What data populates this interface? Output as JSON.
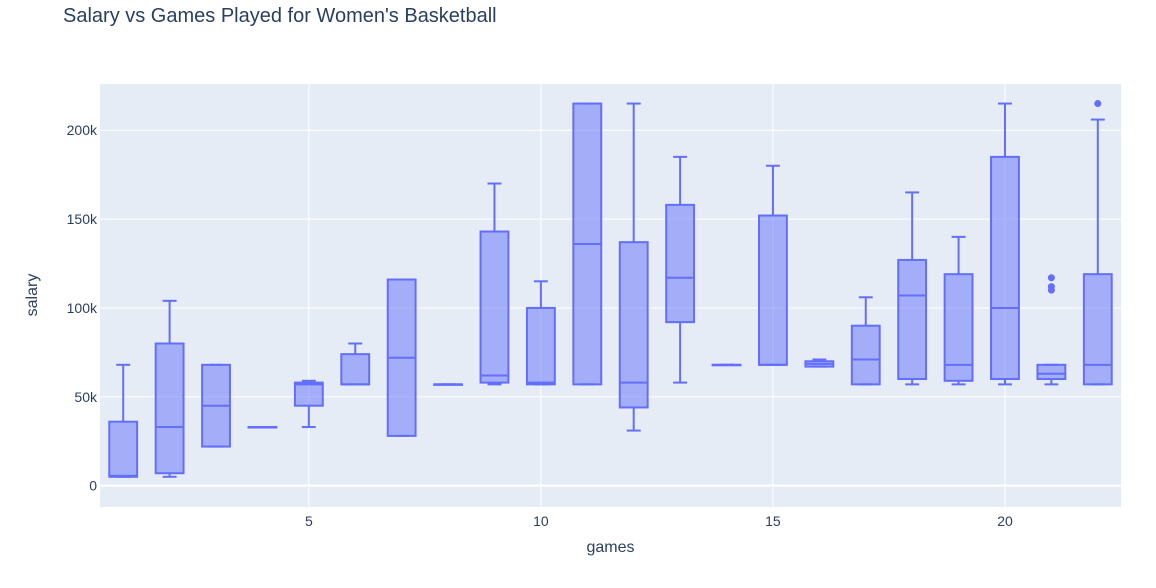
{
  "chart_data": {
    "type": "box",
    "title": "Salary vs Games Played for Women's Basketball",
    "xlabel": "games",
    "ylabel": "salary",
    "xlim": [
      0.5,
      22.5
    ],
    "ylim": [
      -12000,
      226000
    ],
    "x_ticks": [
      5,
      10,
      15,
      20
    ],
    "x_tick_labels": [
      "5",
      "10",
      "15",
      "20"
    ],
    "y_ticks": [
      0,
      50000,
      100000,
      150000,
      200000
    ],
    "y_tick_labels": [
      "0",
      "50k",
      "100k",
      "150k",
      "200k"
    ],
    "grid": true,
    "colors": {
      "box": "#636efa",
      "fill": "rgba(99,110,250,0.5)",
      "plot_bg": "#e5ecf6"
    },
    "boxes": [
      {
        "x": 1,
        "min": 5000,
        "q1": 5000,
        "median": 5500,
        "q3": 36000,
        "max": 68000
      },
      {
        "x": 2,
        "min": 5000,
        "q1": 7000,
        "median": 33000,
        "q3": 80000,
        "max": 104000
      },
      {
        "x": 3,
        "min": 22000,
        "q1": 22000,
        "median": 45000,
        "q3": 68000,
        "max": 68000
      },
      {
        "x": 4,
        "min": 33000,
        "q1": 33000,
        "median": 33000,
        "q3": 33000,
        "max": 33000
      },
      {
        "x": 5,
        "min": 33000,
        "q1": 45000,
        "median": 57000,
        "q3": 58000,
        "max": 59000
      },
      {
        "x": 6,
        "min": 57000,
        "q1": 57000,
        "median": 57000,
        "q3": 74000,
        "max": 80000
      },
      {
        "x": 7,
        "min": 28000,
        "q1": 28000,
        "median": 72000,
        "q3": 116000,
        "max": 116000
      },
      {
        "x": 8,
        "min": 57000,
        "q1": 57000,
        "median": 57000,
        "q3": 57000,
        "max": 57000
      },
      {
        "x": 9,
        "min": 57000,
        "q1": 58000,
        "median": 62000,
        "q3": 143000,
        "max": 170000
      },
      {
        "x": 10,
        "min": 57000,
        "q1": 57000,
        "median": 58000,
        "q3": 100000,
        "max": 115000
      },
      {
        "x": 11,
        "min": 57000,
        "q1": 57000,
        "median": 136000,
        "q3": 215000,
        "max": 215000
      },
      {
        "x": 12,
        "min": 31000,
        "q1": 44000,
        "median": 58000,
        "q3": 137000,
        "max": 215000
      },
      {
        "x": 13,
        "min": 58000,
        "q1": 92000,
        "median": 117000,
        "q3": 158000,
        "max": 185000
      },
      {
        "x": 14,
        "min": 68000,
        "q1": 68000,
        "median": 68000,
        "q3": 68000,
        "max": 68000
      },
      {
        "x": 15,
        "min": 68000,
        "q1": 68000,
        "median": 68000,
        "q3": 152000,
        "max": 180000
      },
      {
        "x": 16,
        "min": 67000,
        "q1": 67000,
        "median": 68500,
        "q3": 70000,
        "max": 71000
      },
      {
        "x": 17,
        "min": 57000,
        "q1": 57000,
        "median": 71000,
        "q3": 90000,
        "max": 106000
      },
      {
        "x": 18,
        "min": 57000,
        "q1": 60000,
        "median": 107000,
        "q3": 127000,
        "max": 165000
      },
      {
        "x": 19,
        "min": 57000,
        "q1": 59000,
        "median": 68000,
        "q3": 119000,
        "max": 140000
      },
      {
        "x": 20,
        "min": 57000,
        "q1": 60000,
        "median": 100000,
        "q3": 185000,
        "max": 215000
      },
      {
        "x": 21,
        "min": 57000,
        "q1": 60000,
        "median": 63000,
        "q3": 68000,
        "max": 68000,
        "outliers": [
          110000,
          112000,
          117000
        ]
      },
      {
        "x": 22,
        "min": 57000,
        "q1": 57000,
        "median": 68000,
        "q3": 119000,
        "max": 206000,
        "outliers": [
          215000
        ]
      }
    ]
  }
}
